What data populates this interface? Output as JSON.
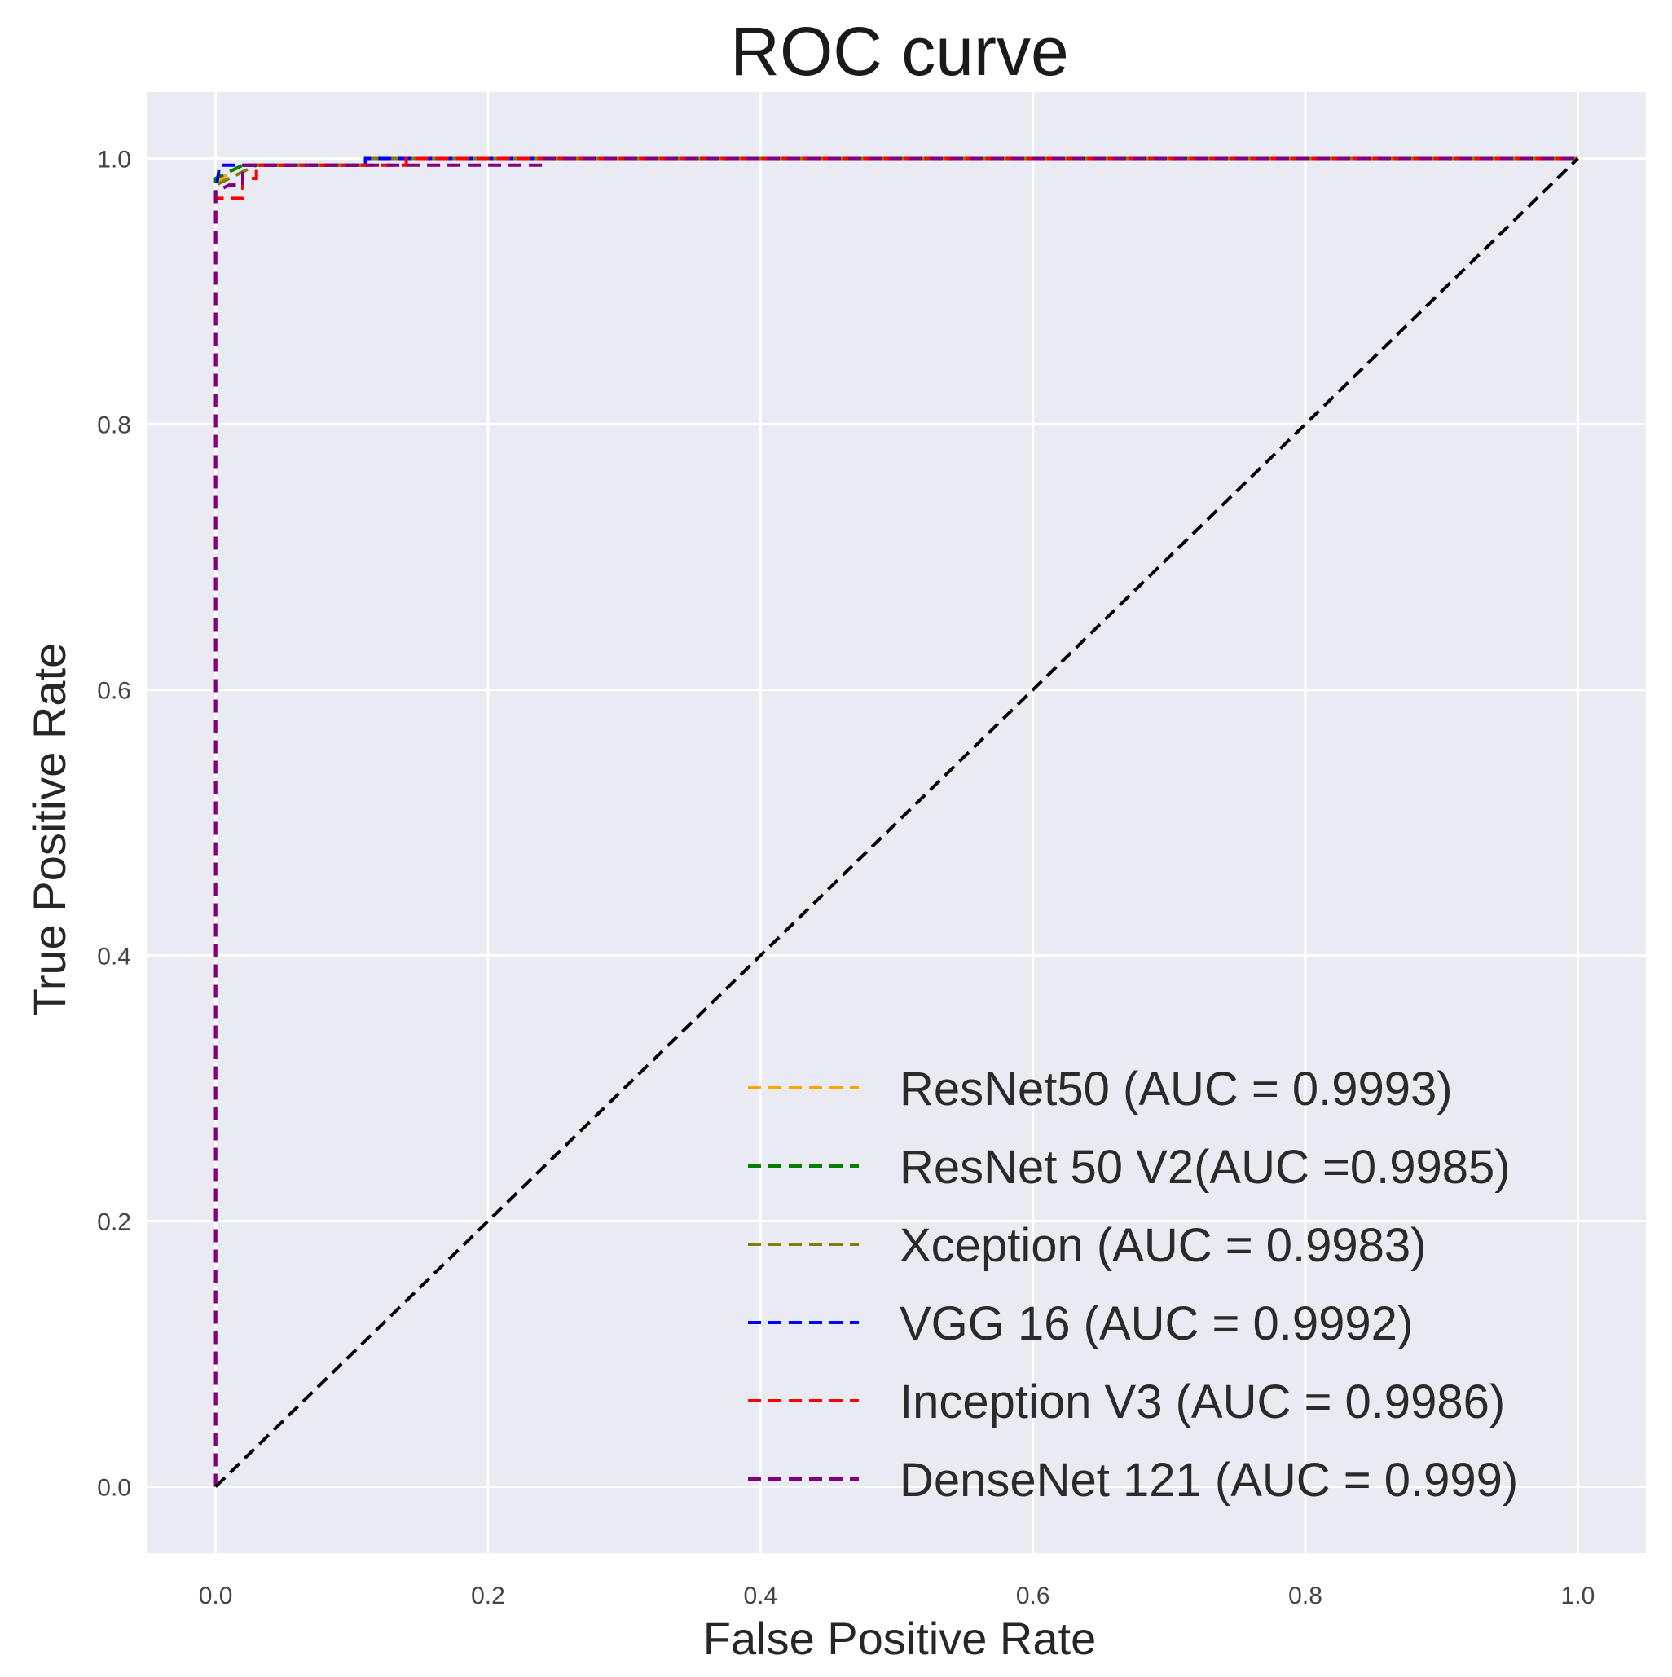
{
  "chart_data": {
    "type": "line",
    "title": "ROC curve",
    "xlabel": "False Positive Rate",
    "ylabel": "True Positive Rate",
    "xlim": [
      -0.05,
      1.05
    ],
    "ylim": [
      -0.05,
      1.05
    ],
    "grid": true,
    "legend_position": "bottom-right",
    "x_ticks": [
      "0.0",
      "0.2",
      "0.4",
      "0.6",
      "0.8",
      "1.0"
    ],
    "y_ticks": [
      "0.0",
      "0.2",
      "0.4",
      "0.6",
      "0.8",
      "1.0"
    ],
    "background_color": "#eaeaf2",
    "series": [
      {
        "name": "ResNet50 (AUC = 0.9993)",
        "color": "#ffa500",
        "x": [
          0,
          0,
          0.01,
          0.02,
          0.11,
          0.11,
          1.0
        ],
        "y": [
          0,
          0.98,
          0.99,
          0.995,
          0.995,
          1.0,
          1.0
        ]
      },
      {
        "name": "ResNet 50 V2(AUC =0.9985)",
        "color": "#008000",
        "x": [
          0,
          0,
          0.02,
          0.11,
          0.11,
          1.0
        ],
        "y": [
          0,
          0.985,
          0.995,
          0.995,
          1.0,
          1.0
        ]
      },
      {
        "name": "Xception (AUC = 0.9983)",
        "color": "#808000",
        "x": [
          0,
          0,
          0.03,
          0.11,
          0.11,
          1.0
        ],
        "y": [
          0,
          0.98,
          0.995,
          0.995,
          1.0,
          1.0
        ]
      },
      {
        "name": "VGG 16 (AUC = 0.9992)",
        "color": "#0000ff",
        "x": [
          0,
          0,
          0.003,
          0.015,
          0.015,
          0.11,
          0.11,
          0.14,
          1.0
        ],
        "y": [
          0,
          0.975,
          0.995,
          0.995,
          0.995,
          0.995,
          1.0,
          1.0,
          1.0
        ]
      },
      {
        "name": "Inception V3 (AUC = 0.9986)",
        "color": "#ff0000",
        "x": [
          0,
          0,
          0.01,
          0.02,
          0.02,
          0.03,
          0.03,
          0.14,
          0.14,
          1.0
        ],
        "y": [
          0,
          0.97,
          0.97,
          0.97,
          0.985,
          0.985,
          0.995,
          0.995,
          1.0,
          1.0
        ]
      },
      {
        "name": "DenseNet 121 (AUC = 0.999)",
        "color": "#800080",
        "x": [
          0,
          0,
          0.01,
          0.02,
          0.02,
          0.24,
          0.24,
          1.0
        ],
        "y": [
          0,
          0.975,
          0.98,
          0.98,
          0.995,
          0.995,
          1.0,
          1.0
        ]
      },
      {
        "name": "chance",
        "color": "#000000",
        "x": [
          0,
          1
        ],
        "y": [
          0,
          1
        ],
        "show_in_legend": false
      }
    ]
  }
}
